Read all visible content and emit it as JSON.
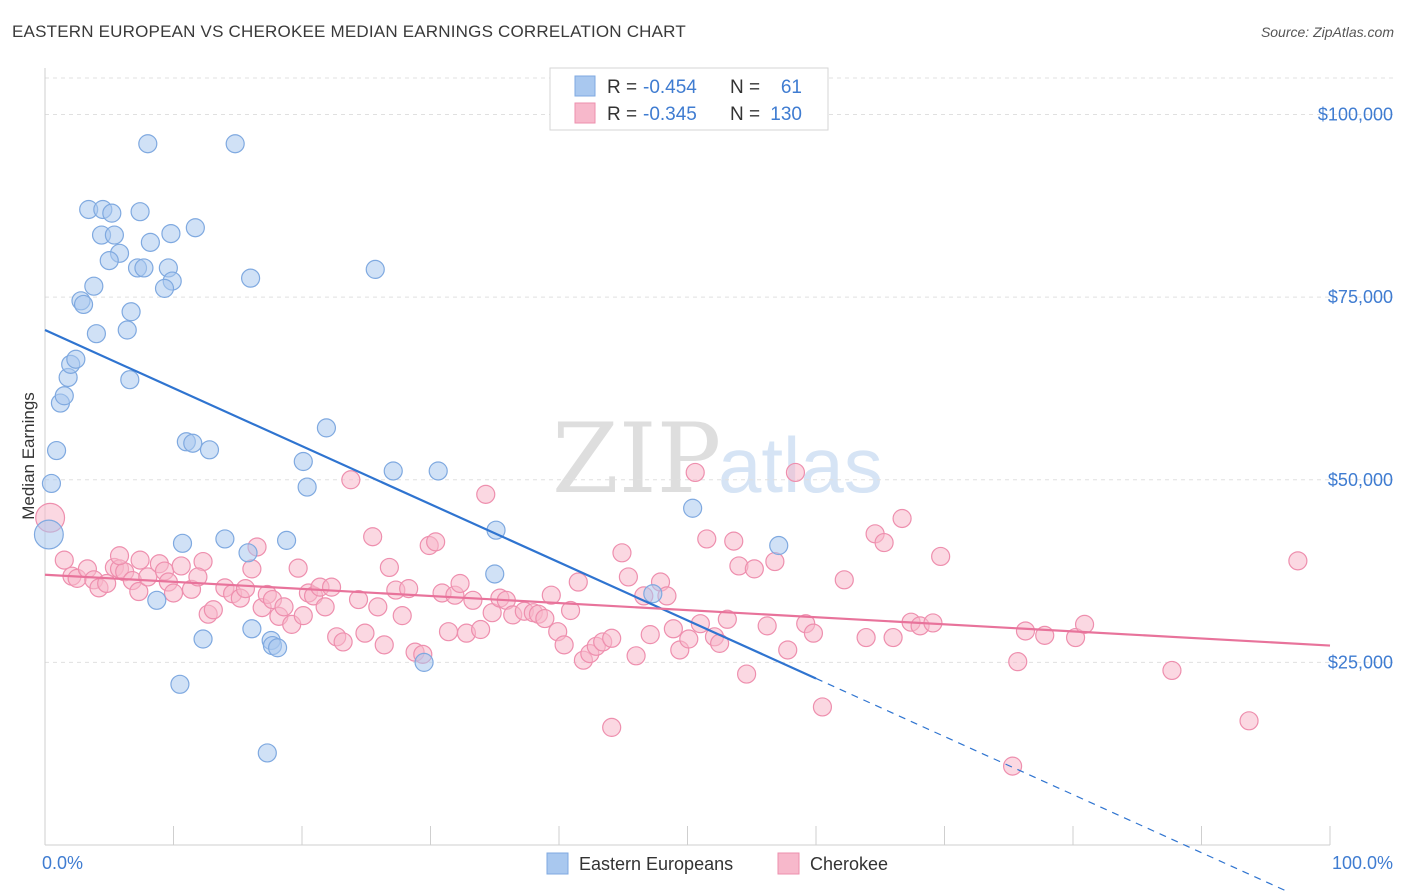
{
  "title": "EASTERN EUROPEAN VS CHEROKEE MEDIAN EARNINGS CORRELATION CHART",
  "source": "Source: ZipAtlas.com",
  "watermark": {
    "zip": "ZIP",
    "atlas": "atlas"
  },
  "legend_top": {
    "r_label": "R =",
    "n_label": "N =",
    "rows": [
      {
        "r": "-0.454",
        "n": "61"
      },
      {
        "r": "-0.345",
        "n": "130"
      }
    ]
  },
  "legend_bottom": [
    "Eastern Europeans",
    "Cherokee"
  ],
  "colors": {
    "blue_fill": "#a9c8ef",
    "blue_stroke": "#7fa9e0",
    "blue_line": "#2f74d0",
    "pink_fill": "#f7b8cb",
    "pink_stroke": "#ee8fae",
    "pink_line": "#e8739b",
    "tick_text": "#3f7cd1",
    "grid": "#e0e0e0"
  },
  "chart_data": {
    "type": "scatter",
    "xlabel": "",
    "ylabel": "Median Earnings",
    "xlim": [
      0,
      100
    ],
    "ylim": [
      0,
      105000
    ],
    "x_tick_labels": [
      "0.0%",
      "100.0%"
    ],
    "y_ticks": [
      25000,
      50000,
      75000,
      100000
    ],
    "y_tick_labels": [
      "$25,000",
      "$50,000",
      "$75,000",
      "$100,000"
    ],
    "series": [
      {
        "name": "Eastern Europeans",
        "r": -0.454,
        "n": 61,
        "trend": {
          "x0": 0,
          "y0": 70500,
          "x1": 60,
          "y1": 22800,
          "dash_to_x": 100
        },
        "points": [
          [
            0.3,
            42500,
            1.6
          ],
          [
            0.5,
            49500,
            1
          ],
          [
            0.9,
            54000,
            1
          ],
          [
            1.2,
            60500,
            1
          ],
          [
            1.5,
            61500,
            1
          ],
          [
            1.8,
            64000,
            1
          ],
          [
            2,
            65800,
            1
          ],
          [
            2.4,
            66500,
            1
          ],
          [
            2.8,
            74500,
            1
          ],
          [
            3,
            74000,
            1
          ],
          [
            3.8,
            76500,
            1
          ],
          [
            4,
            70000,
            1
          ],
          [
            3.4,
            87000,
            1
          ],
          [
            4.5,
            87000,
            1
          ],
          [
            5.2,
            86500,
            1
          ],
          [
            4.4,
            83500,
            1
          ],
          [
            5.4,
            83500,
            1
          ],
          [
            5.8,
            81000,
            1
          ],
          [
            5,
            80000,
            1
          ],
          [
            7.4,
            86700,
            1
          ],
          [
            8.2,
            82500,
            1
          ],
          [
            9.8,
            83700,
            1
          ],
          [
            11.7,
            84500,
            1
          ],
          [
            7.2,
            79000,
            1
          ],
          [
            7.7,
            79000,
            1
          ],
          [
            9.6,
            79000,
            1
          ],
          [
            9.9,
            77200,
            1
          ],
          [
            9.3,
            76200,
            1
          ],
          [
            6.7,
            73000,
            1
          ],
          [
            6.4,
            70500,
            1
          ],
          [
            6.6,
            63700,
            1
          ],
          [
            8,
            96000,
            1
          ],
          [
            14.8,
            96000,
            1
          ],
          [
            16,
            77600,
            1
          ],
          [
            25.7,
            78800,
            1
          ],
          [
            11,
            55200,
            1
          ],
          [
            11.5,
            55000,
            1
          ],
          [
            12.8,
            54100,
            1
          ],
          [
            21.9,
            57100,
            1
          ],
          [
            20.1,
            52500,
            1
          ],
          [
            27.1,
            51200,
            1
          ],
          [
            30.6,
            51200,
            1
          ],
          [
            20.4,
            49000,
            1
          ],
          [
            10.7,
            41300,
            1
          ],
          [
            14,
            41900,
            1
          ],
          [
            15.8,
            40000,
            1
          ],
          [
            18.8,
            41700,
            1
          ],
          [
            35.1,
            43100,
            1
          ],
          [
            8.7,
            33500,
            1
          ],
          [
            12.3,
            28200,
            1
          ],
          [
            16.1,
            29600,
            1
          ],
          [
            17.6,
            28000,
            1
          ],
          [
            17.7,
            27300,
            1
          ],
          [
            18.1,
            27000,
            1
          ],
          [
            29.5,
            25000,
            1
          ],
          [
            35,
            37100,
            1
          ],
          [
            47.3,
            34400,
            1
          ],
          [
            50.4,
            46100,
            1
          ],
          [
            57.1,
            41000,
            1
          ],
          [
            10.5,
            22000,
            1
          ],
          [
            17.3,
            12600,
            1
          ]
        ]
      },
      {
        "name": "Cherokee",
        "r": -0.345,
        "n": 130,
        "trend": {
          "x0": 0,
          "y0": 37000,
          "x1": 100,
          "y1": 27300
        },
        "points": [
          [
            0.4,
            44800,
            1.6
          ],
          [
            1.5,
            39000,
            1
          ],
          [
            2.1,
            36800,
            1
          ],
          [
            2.5,
            36500,
            1
          ],
          [
            3.3,
            37800,
            1
          ],
          [
            3.8,
            36300,
            1
          ],
          [
            4.2,
            35200,
            1
          ],
          [
            4.8,
            35800,
            1
          ],
          [
            5.4,
            38000,
            1
          ],
          [
            5.8,
            37800,
            1
          ],
          [
            6.2,
            37400,
            1
          ],
          [
            5.8,
            39600,
            1
          ],
          [
            7.4,
            39000,
            1
          ],
          [
            6.8,
            36200,
            1
          ],
          [
            7.3,
            34700,
            1
          ],
          [
            8,
            36700,
            1
          ],
          [
            8.9,
            38500,
            1
          ],
          [
            9.3,
            37500,
            1
          ],
          [
            9.6,
            36000,
            1
          ],
          [
            10,
            34500,
            1
          ],
          [
            10.6,
            38200,
            1
          ],
          [
            11.4,
            35000,
            1
          ],
          [
            12.3,
            38800,
            1
          ],
          [
            11.9,
            36700,
            1
          ],
          [
            12.7,
            31600,
            1
          ],
          [
            13.1,
            32200,
            1
          ],
          [
            14,
            35200,
            1
          ],
          [
            14.6,
            34400,
            1
          ],
          [
            15.2,
            33800,
            1
          ],
          [
            15.6,
            35100,
            1
          ],
          [
            16.1,
            37800,
            1
          ],
          [
            16.5,
            40800,
            1
          ],
          [
            16.9,
            32500,
            1
          ],
          [
            17.3,
            34300,
            1
          ],
          [
            17.7,
            33600,
            1
          ],
          [
            18.2,
            31300,
            1
          ],
          [
            18.6,
            32600,
            1
          ],
          [
            19.2,
            30200,
            1
          ],
          [
            19.7,
            37900,
            1
          ],
          [
            20.1,
            31400,
            1
          ],
          [
            20.5,
            34500,
            1
          ],
          [
            20.9,
            34100,
            1
          ],
          [
            21.4,
            35300,
            1
          ],
          [
            21.8,
            32600,
            1
          ],
          [
            22.3,
            35300,
            1
          ],
          [
            22.7,
            28500,
            1
          ],
          [
            23.2,
            27800,
            1
          ],
          [
            23.8,
            50000,
            1
          ],
          [
            24.4,
            33600,
            1
          ],
          [
            24.9,
            29000,
            1
          ],
          [
            25.5,
            42200,
            1
          ],
          [
            25.9,
            32600,
            1
          ],
          [
            26.4,
            27400,
            1
          ],
          [
            26.8,
            38000,
            1
          ],
          [
            27.3,
            34900,
            1
          ],
          [
            27.8,
            31400,
            1
          ],
          [
            28.3,
            35100,
            1
          ],
          [
            28.8,
            26400,
            1
          ],
          [
            29.4,
            26100,
            1
          ],
          [
            29.9,
            41000,
            1
          ],
          [
            30.4,
            41500,
            1
          ],
          [
            30.9,
            34500,
            1
          ],
          [
            31.4,
            29200,
            1
          ],
          [
            31.9,
            34200,
            1
          ],
          [
            32.3,
            35800,
            1
          ],
          [
            32.8,
            29000,
            1
          ],
          [
            33.3,
            33500,
            1
          ],
          [
            33.9,
            29500,
            1
          ],
          [
            34.3,
            48000,
            1
          ],
          [
            34.8,
            31800,
            1
          ],
          [
            35.4,
            33800,
            1
          ],
          [
            35.9,
            33500,
            1
          ],
          [
            36.4,
            31500,
            1
          ],
          [
            37.3,
            32000,
            1
          ],
          [
            38,
            31800,
            1
          ],
          [
            38.4,
            31600,
            1
          ],
          [
            38.9,
            31000,
            1
          ],
          [
            39.4,
            34200,
            1
          ],
          [
            39.9,
            29200,
            1
          ],
          [
            40.4,
            27400,
            1
          ],
          [
            40.9,
            32100,
            1
          ],
          [
            41.5,
            36000,
            1
          ],
          [
            41.9,
            25300,
            1
          ],
          [
            42.4,
            26200,
            1
          ],
          [
            42.9,
            27200,
            1
          ],
          [
            43.4,
            27800,
            1
          ],
          [
            44.1,
            28300,
            1
          ],
          [
            44.9,
            40000,
            1
          ],
          [
            45.4,
            36700,
            1
          ],
          [
            46,
            25900,
            1
          ],
          [
            46.6,
            34100,
            1
          ],
          [
            47.1,
            28800,
            1
          ],
          [
            47.9,
            36000,
            1
          ],
          [
            48.4,
            34100,
            1
          ],
          [
            48.9,
            29600,
            1
          ],
          [
            49.4,
            26700,
            1
          ],
          [
            50.1,
            28200,
            1
          ],
          [
            50.6,
            51000,
            1
          ],
          [
            51,
            30300,
            1
          ],
          [
            51.5,
            41900,
            1
          ],
          [
            52.1,
            28500,
            1
          ],
          [
            52.5,
            27600,
            1
          ],
          [
            53.1,
            30900,
            1
          ],
          [
            53.6,
            41600,
            1
          ],
          [
            54,
            38200,
            1
          ],
          [
            54.6,
            23400,
            1
          ],
          [
            55.2,
            37800,
            1
          ],
          [
            56.2,
            30000,
            1
          ],
          [
            56.8,
            38800,
            1
          ],
          [
            57.8,
            26700,
            1
          ],
          [
            58.4,
            51000,
            1
          ],
          [
            59.2,
            30300,
            1
          ],
          [
            59.8,
            29000,
            1
          ],
          [
            60.5,
            18900,
            1
          ],
          [
            62.2,
            36300,
            1
          ],
          [
            63.9,
            28400,
            1
          ],
          [
            64.6,
            42600,
            1
          ],
          [
            65.3,
            41400,
            1
          ],
          [
            66,
            28400,
            1
          ],
          [
            66.7,
            44700,
            1
          ],
          [
            67.4,
            30500,
            1
          ],
          [
            68.1,
            30000,
            1
          ],
          [
            69.1,
            30400,
            1
          ],
          [
            69.7,
            39500,
            1
          ],
          [
            75.7,
            25100,
            1
          ],
          [
            76.3,
            29300,
            1
          ],
          [
            77.8,
            28700,
            1
          ],
          [
            80.2,
            28400,
            1
          ],
          [
            80.9,
            30200,
            1
          ],
          [
            87.7,
            23900,
            1
          ],
          [
            93.7,
            17000,
            1
          ],
          [
            97.5,
            38900,
            1
          ],
          [
            75.3,
            10800,
            1
          ],
          [
            44.1,
            16100,
            1
          ]
        ]
      }
    ]
  }
}
